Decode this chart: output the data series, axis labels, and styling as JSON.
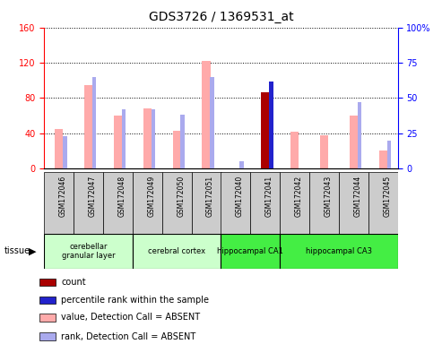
{
  "title": "GDS3726 / 1369531_at",
  "samples": [
    "GSM172046",
    "GSM172047",
    "GSM172048",
    "GSM172049",
    "GSM172050",
    "GSM172051",
    "GSM172040",
    "GSM172041",
    "GSM172042",
    "GSM172043",
    "GSM172044",
    "GSM172045"
  ],
  "value_absent": [
    45,
    95,
    60,
    68,
    43,
    122,
    null,
    null,
    42,
    38,
    60,
    20
  ],
  "rank_absent": [
    23,
    65,
    42,
    42,
    38,
    65,
    5,
    null,
    null,
    null,
    47,
    20
  ],
  "count": [
    null,
    null,
    null,
    null,
    null,
    null,
    null,
    87,
    null,
    null,
    null,
    null
  ],
  "percentile_rank": [
    null,
    null,
    null,
    null,
    null,
    null,
    null,
    62,
    null,
    null,
    null,
    null
  ],
  "tissue_bounds": [
    {
      "start": 0,
      "end": 3,
      "label": "cerebellar\ngranular layer",
      "color": "#ccffcc"
    },
    {
      "start": 3,
      "end": 6,
      "label": "cerebral cortex",
      "color": "#ccffcc"
    },
    {
      "start": 6,
      "end": 8,
      "label": "hippocampal CA1",
      "color": "#44ee44"
    },
    {
      "start": 8,
      "end": 12,
      "label": "hippocampal CA3",
      "color": "#44ee44"
    }
  ],
  "ylim_left": [
    0,
    160
  ],
  "ylim_right": [
    0,
    100
  ],
  "yticks_left": [
    0,
    40,
    80,
    120,
    160
  ],
  "yticks_right": [
    0,
    25,
    50,
    75,
    100
  ],
  "color_count": "#aa0000",
  "color_percentile": "#2222cc",
  "color_value_absent": "#ffaaaa",
  "color_rank_absent": "#aaaaee",
  "legend_items": [
    {
      "color": "#aa0000",
      "label": "count"
    },
    {
      "color": "#2222cc",
      "label": "percentile rank within the sample"
    },
    {
      "color": "#ffaaaa",
      "label": "value, Detection Call = ABSENT"
    },
    {
      "color": "#aaaaee",
      "label": "rank, Detection Call = ABSENT"
    }
  ]
}
